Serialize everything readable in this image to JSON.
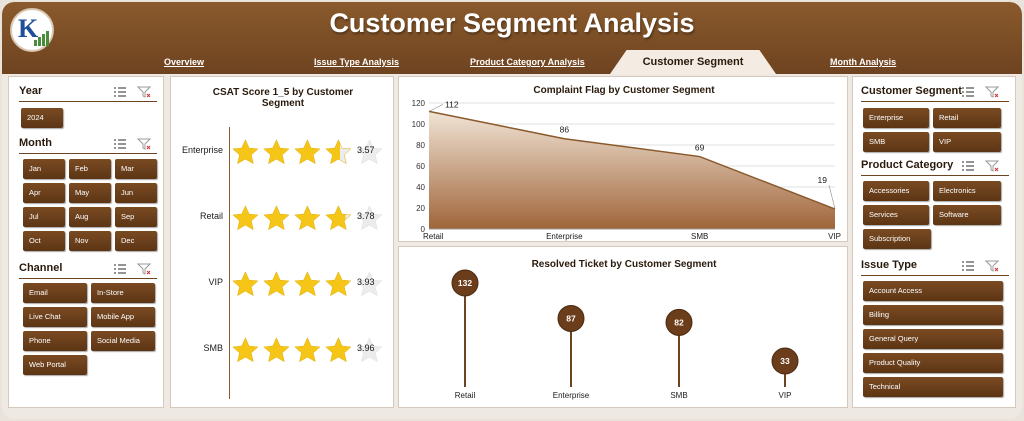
{
  "header": {
    "title": "Customer Segment Analysis"
  },
  "tabs": [
    {
      "label": "Overview"
    },
    {
      "label": "Issue Type Analysis"
    },
    {
      "label": "Product Category Analysis"
    },
    {
      "label": "Customer Segment",
      "active": true
    },
    {
      "label": "Month Analysis"
    }
  ],
  "left_slicers": {
    "year": {
      "title": "Year",
      "items": [
        "2024"
      ]
    },
    "month": {
      "title": "Month",
      "items": [
        "Jan",
        "Feb",
        "Mar",
        "Apr",
        "May",
        "Jun",
        "Jul",
        "Aug",
        "Sep",
        "Oct",
        "Nov",
        "Dec"
      ]
    },
    "channel": {
      "title": "Channel",
      "items": [
        "Email",
        "In-Store",
        "Live Chat",
        "Mobile App",
        "Phone",
        "Social Media",
        "Web Portal"
      ]
    }
  },
  "right_slicers": {
    "customer_segment": {
      "title": "Customer Segment",
      "items": [
        "Enterprise",
        "Retail",
        "SMB",
        "VIP"
      ]
    },
    "product_category": {
      "title": "Product Category",
      "items": [
        "Accessories",
        "Electronics",
        "Services",
        "Software",
        "Subscription"
      ]
    },
    "issue_type": {
      "title": "Issue Type",
      "items": [
        "Account Access",
        "Billing",
        "General Query",
        "Product Quality",
        "Technical"
      ]
    }
  },
  "csat_chart": {
    "title_line1": "CSAT Score 1_5 by Customer",
    "title_line2": "Segment",
    "rows": [
      {
        "segment": "Enterprise",
        "value": 3.57,
        "label": "3.57"
      },
      {
        "segment": "Retail",
        "value": 3.78,
        "label": "3.78"
      },
      {
        "segment": "VIP",
        "value": 3.93,
        "label": "3.93"
      },
      {
        "segment": "SMB",
        "value": 3.96,
        "label": "3.96"
      }
    ],
    "max_stars": 5
  },
  "chart_data": [
    {
      "type": "area",
      "title": "Complaint Flag by Customer Segment",
      "categories": [
        "Retail",
        "Enterprise",
        "SMB",
        "VIP"
      ],
      "values": [
        112,
        86,
        69,
        19
      ],
      "ylim": [
        0,
        120
      ],
      "yticks": [
        0,
        20,
        40,
        60,
        80,
        100,
        120
      ],
      "grid": true
    },
    {
      "type": "lollipop",
      "title": "Resolved Ticket by Customer Segment",
      "categories": [
        "Retail",
        "Enterprise",
        "SMB",
        "VIP"
      ],
      "values": [
        132,
        87,
        82,
        33
      ]
    }
  ],
  "colors": {
    "brand_brown": "#6e4320",
    "star_gold": "#f5c518",
    "area_fill_top": "#a0653a"
  }
}
